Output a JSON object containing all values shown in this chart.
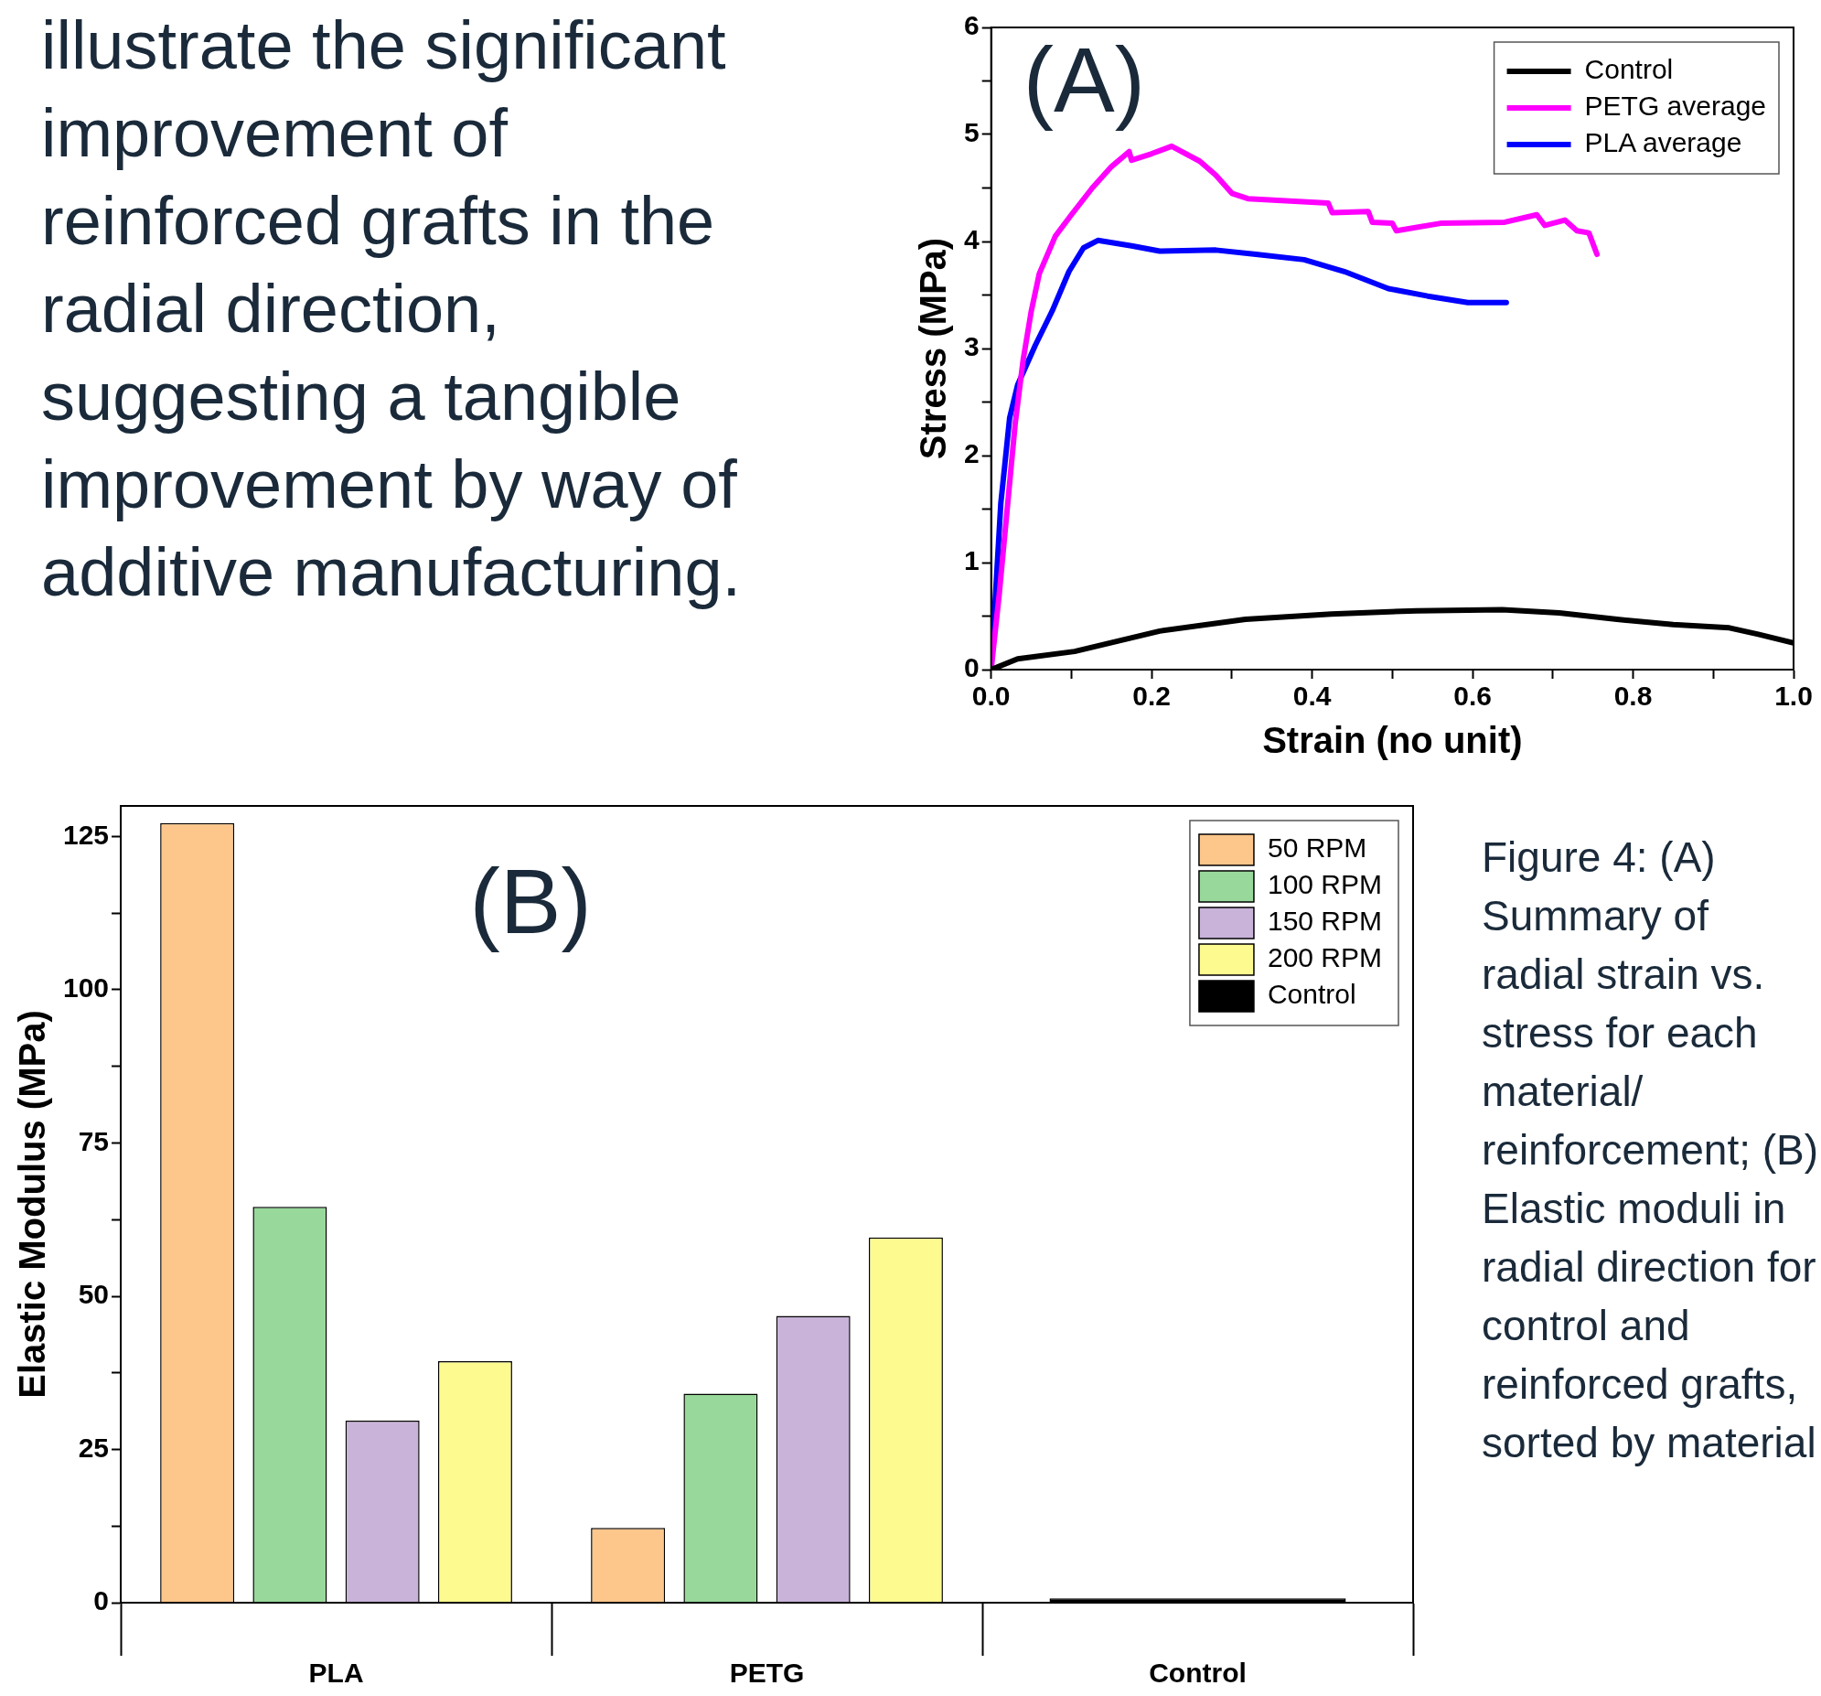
{
  "chart_data": [
    {
      "type": "line",
      "xlabel": "Strain (no unit)",
      "ylabel": "Stress (MPa)",
      "xlim": [
        0,
        1
      ],
      "ylim": [
        0,
        6
      ],
      "xticks": [
        {
          "value": 0,
          "label": "0.0"
        },
        {
          "value": 0.1,
          "label": null
        },
        0.2,
        {
          "value": 0.3,
          "label": null
        },
        0.4,
        {
          "value": 0.5,
          "label": null
        },
        0.6,
        {
          "value": 0.7,
          "label": null
        },
        0.8,
        {
          "value": 0.9,
          "label": null
        },
        {
          "value": 1,
          "label": "1.0"
        }
      ],
      "yticks": [
        0,
        {
          "value": 0.5,
          "label": null
        },
        1,
        {
          "value": 1.5,
          "label": null
        },
        2,
        {
          "value": 2.5,
          "label": null
        },
        3,
        {
          "value": 3.5,
          "label": null
        },
        4,
        {
          "value": 4.5,
          "label": null
        },
        5,
        {
          "value": 5.5,
          "label": null
        },
        6
      ],
      "legend": "top right",
      "marker": "none",
      "grid": false,
      "series": [
        {
          "name": "Control",
          "color": "#000000",
          "x": [
            0,
            0.033,
            0.104,
            0.21,
            0.317,
            0.424,
            0.53,
            0.637,
            0.708,
            0.78,
            0.85,
            0.92,
            0.956,
            1.0
          ],
          "values": [
            0,
            0.1,
            0.17,
            0.36,
            0.47,
            0.52,
            0.55,
            0.56,
            0.53,
            0.47,
            0.42,
            0.39,
            0.33,
            0.25
          ]
        },
        {
          "name": "PETG average",
          "color": "#ff00ff",
          "x": [
            0,
            0.01,
            0.02,
            0.03,
            0.04,
            0.05,
            0.06,
            0.08,
            0.1,
            0.126,
            0.15,
            0.172,
            0.175,
            0.2,
            0.225,
            0.26,
            0.28,
            0.3,
            0.32,
            0.42,
            0.425,
            0.47,
            0.475,
            0.5,
            0.505,
            0.56,
            0.64,
            0.68,
            0.69,
            0.715,
            0.73,
            0.745,
            0.755
          ],
          "values": [
            0,
            0.7,
            1.5,
            2.3,
            2.9,
            3.35,
            3.7,
            4.05,
            4.25,
            4.5,
            4.7,
            4.84,
            4.76,
            4.82,
            4.89,
            4.75,
            4.62,
            4.45,
            4.4,
            4.36,
            4.27,
            4.28,
            4.18,
            4.17,
            4.1,
            4.17,
            4.18,
            4.25,
            4.15,
            4.2,
            4.1,
            4.08,
            3.88
          ]
        },
        {
          "name": "PLA average",
          "color": "#0000ff",
          "x": [
            0,
            0.012,
            0.023,
            0.033,
            0.055,
            0.076,
            0.097,
            0.115,
            0.133,
            0.175,
            0.21,
            0.28,
            0.33,
            0.39,
            0.44,
            0.495,
            0.544,
            0.594,
            0.642
          ],
          "values": [
            0,
            1.55,
            2.35,
            2.66,
            3.03,
            3.35,
            3.72,
            3.94,
            4.01,
            3.96,
            3.91,
            3.92,
            3.88,
            3.83,
            3.72,
            3.56,
            3.49,
            3.43,
            3.43
          ]
        }
      ],
      "annotations": [
        "(A)",
        "illustrate the significant improvement of reinforced grafts in the radial direction, suggesting a tangible improvement by way of additive manufacturing."
      ]
    },
    {
      "type": "bar",
      "ylabel": "Elastic Modulus (MPa)",
      "categories": [
        "PLA",
        "PETG",
        "Control"
      ],
      "ylim": [
        0,
        130
      ],
      "yticks": [
        0,
        {
          "value": 12.5,
          "label": null
        },
        25,
        {
          "value": 37.5,
          "label": null
        },
        50,
        {
          "value": 62.5,
          "label": null
        },
        75,
        {
          "value": 87.5,
          "label": null
        },
        100,
        {
          "value": 112.5,
          "label": null
        },
        125
      ],
      "legend": "top right",
      "grid": false,
      "series": [
        {
          "name": "50 RPM",
          "color": "#fdc68b",
          "values": [
            127.2,
            12.2,
            null
          ]
        },
        {
          "name": "100 RPM",
          "color": "#98d89a",
          "values": [
            64.6,
            34.1,
            null
          ]
        },
        {
          "name": "150 RPM",
          "color": "#c9b3d9",
          "values": [
            29.7,
            46.8,
            null
          ]
        },
        {
          "name": "200 RPM",
          "color": "#fdfa8f",
          "values": [
            39.4,
            59.6,
            null
          ]
        },
        {
          "name": "Control",
          "color": "#000000",
          "values": [
            null,
            null,
            0.7
          ]
        }
      ],
      "annotations": [
        "(B)",
        "Figure 4: (A) Summary of radial strain vs. stress for each material/ reinforcement; (B) Elastic moduli in radial direction for control and reinforced grafts, sorted by material"
      ]
    }
  ]
}
